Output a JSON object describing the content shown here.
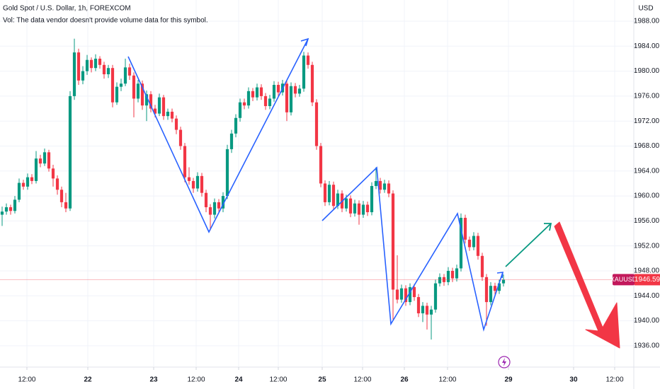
{
  "chart_data": {
    "type": "candlestick",
    "title": "Gold Spot / U.S. Dollar, 1h, FOREXCOM",
    "subtitle": "Vol: The data vendor doesn't provide volume data for this symbol.",
    "currency": "USD",
    "symbol": "XAUUSD",
    "up_color": "#089981",
    "down_color": "#f23645",
    "grid": true,
    "xlim": [
      -0.5,
      148.67
    ],
    "xticks": [
      {
        "value": 5.83,
        "label": "12:00"
      },
      {
        "value": 20.17,
        "label": "22"
      },
      {
        "value": 35.67,
        "label": "23"
      },
      {
        "value": 45.67,
        "label": "12:00"
      },
      {
        "value": 55.67,
        "label": "24"
      },
      {
        "value": 65,
        "label": "12:00"
      },
      {
        "value": 75.33,
        "label": "25"
      },
      {
        "value": 84.83,
        "label": "12:00"
      },
      {
        "value": 94.67,
        "label": "26"
      },
      {
        "value": 104.83,
        "label": "12:00"
      },
      {
        "value": 119.17,
        "label": "29"
      },
      {
        "value": 134.5,
        "label": "30"
      },
      {
        "value": 144.17,
        "label": "12:00"
      }
    ],
    "ylim": [
      1932.7,
      1991.4
    ],
    "yticks": [
      {
        "value": 1936,
        "label": "1936.00"
      },
      {
        "value": 1940,
        "label": "1940.00"
      },
      {
        "value": 1944,
        "label": "1944.00"
      },
      {
        "value": 1948,
        "label": "1948.00"
      },
      {
        "value": 1952,
        "label": "1952.00"
      },
      {
        "value": 1956,
        "label": "1956.00"
      },
      {
        "value": 1960,
        "label": "1960.00"
      },
      {
        "value": 1964,
        "label": "1964.00"
      },
      {
        "value": 1968,
        "label": "1968.00"
      },
      {
        "value": 1972,
        "label": "1972.00"
      },
      {
        "value": 1976,
        "label": "1976.00"
      },
      {
        "value": 1980,
        "label": "1980.00"
      },
      {
        "value": 1984,
        "label": "1984.00"
      },
      {
        "value": 1988,
        "label": "1988.00"
      }
    ],
    "ohlc": [
      [
        1957.0,
        1958.3,
        1955.2,
        1957.5
      ],
      [
        1957.5,
        1958.8,
        1957.0,
        1958.2
      ],
      [
        1958.2,
        1958.6,
        1957.0,
        1957.6
      ],
      [
        1957.6,
        1960.0,
        1957.2,
        1959.4
      ],
      [
        1959.4,
        1962.8,
        1959.0,
        1962.1
      ],
      [
        1962.1,
        1962.6,
        1961.0,
        1961.5
      ],
      [
        1961.5,
        1963.6,
        1961.0,
        1963.0
      ],
      [
        1963.0,
        1963.5,
        1961.9,
        1962.4
      ],
      [
        1962.4,
        1967.2,
        1962.0,
        1966.0
      ],
      [
        1966.0,
        1966.6,
        1964.6,
        1965.2
      ],
      [
        1965.2,
        1967.6,
        1964.8,
        1967.0
      ],
      [
        1967.0,
        1967.4,
        1963.9,
        1964.4
      ],
      [
        1964.4,
        1965.0,
        1961.5,
        1962.8
      ],
      [
        1962.8,
        1963.3,
        1960.2,
        1961.0
      ],
      [
        1961.0,
        1961.5,
        1958.2,
        1959.0
      ],
      [
        1959.0,
        1960.5,
        1957.4,
        1958.0
      ],
      [
        1958.0,
        1976.8,
        1957.6,
        1976.0
      ],
      [
        1976.0,
        1985.2,
        1975.4,
        1983.0
      ],
      [
        1983.0,
        1983.6,
        1977.8,
        1978.5
      ],
      [
        1978.5,
        1980.8,
        1977.9,
        1980.0
      ],
      [
        1980.0,
        1982.6,
        1979.4,
        1981.8
      ],
      [
        1981.8,
        1982.2,
        1979.8,
        1980.5
      ],
      [
        1980.5,
        1982.7,
        1980.0,
        1982.0
      ],
      [
        1982.0,
        1982.4,
        1980.4,
        1981.0
      ],
      [
        1981.0,
        1981.5,
        1978.8,
        1979.5
      ],
      [
        1979.5,
        1981.0,
        1978.9,
        1980.5
      ],
      [
        1980.5,
        1981.0,
        1974.2,
        1975.0
      ],
      [
        1975.0,
        1978.2,
        1974.6,
        1977.5
      ],
      [
        1977.5,
        1978.8,
        1976.8,
        1978.0
      ],
      [
        1978.0,
        1982.0,
        1977.6,
        1980.6
      ],
      [
        1980.6,
        1981.2,
        1978.6,
        1979.3
      ],
      [
        1979.3,
        1979.8,
        1972.6,
        1975.6
      ],
      [
        1975.6,
        1978.6,
        1975.0,
        1978.0
      ],
      [
        1978.0,
        1978.5,
        1973.8,
        1974.5
      ],
      [
        1974.5,
        1976.9,
        1972.0,
        1976.3
      ],
      [
        1976.3,
        1976.8,
        1973.4,
        1974.0
      ],
      [
        1974.0,
        1974.6,
        1972.6,
        1973.2
      ],
      [
        1973.2,
        1976.4,
        1972.8,
        1975.8
      ],
      [
        1975.8,
        1976.2,
        1972.2,
        1972.8
      ],
      [
        1972.8,
        1974.0,
        1972.2,
        1973.5
      ],
      [
        1973.5,
        1974.0,
        1971.8,
        1972.4
      ],
      [
        1972.4,
        1972.9,
        1969.9,
        1970.6
      ],
      [
        1970.6,
        1971.1,
        1967.4,
        1968.0
      ],
      [
        1968.0,
        1968.5,
        1962.2,
        1963.0
      ],
      [
        1963.0,
        1964.6,
        1961.8,
        1962.4
      ],
      [
        1962.4,
        1962.9,
        1960.5,
        1961.2
      ],
      [
        1961.2,
        1963.8,
        1960.7,
        1963.2
      ],
      [
        1963.2,
        1963.7,
        1959.9,
        1960.5
      ],
      [
        1960.5,
        1961.0,
        1957.4,
        1958.2
      ],
      [
        1958.2,
        1958.7,
        1954.5,
        1957.0
      ],
      [
        1957.0,
        1959.6,
        1956.4,
        1959.0
      ],
      [
        1959.0,
        1959.5,
        1957.3,
        1958.0
      ],
      [
        1958.0,
        1960.6,
        1957.4,
        1960.0
      ],
      [
        1960.0,
        1968.2,
        1959.5,
        1967.5
      ],
      [
        1967.5,
        1970.6,
        1966.9,
        1970.0
      ],
      [
        1970.0,
        1973.1,
        1969.4,
        1972.5
      ],
      [
        1972.5,
        1975.6,
        1971.9,
        1975.0
      ],
      [
        1975.0,
        1975.6,
        1973.9,
        1974.5
      ],
      [
        1974.5,
        1977.4,
        1974.0,
        1976.8
      ],
      [
        1976.8,
        1977.3,
        1975.2,
        1975.8
      ],
      [
        1975.8,
        1978.0,
        1975.3,
        1977.4
      ],
      [
        1977.4,
        1977.9,
        1975.4,
        1976.0
      ],
      [
        1976.0,
        1976.5,
        1973.8,
        1974.4
      ],
      [
        1974.4,
        1976.2,
        1973.9,
        1975.6
      ],
      [
        1975.6,
        1978.4,
        1975.1,
        1977.8
      ],
      [
        1977.8,
        1978.3,
        1976.0,
        1976.6
      ],
      [
        1976.6,
        1978.6,
        1976.1,
        1978.0
      ],
      [
        1978.0,
        1978.5,
        1972.0,
        1973.4
      ],
      [
        1973.4,
        1978.2,
        1972.9,
        1977.6
      ],
      [
        1977.6,
        1978.1,
        1975.8,
        1976.4
      ],
      [
        1976.4,
        1977.8,
        1975.9,
        1977.2
      ],
      [
        1977.2,
        1983.1,
        1976.7,
        1982.5
      ],
      [
        1982.5,
        1983.0,
        1980.4,
        1981.0
      ],
      [
        1981.0,
        1981.5,
        1974.4,
        1975.0
      ],
      [
        1975.0,
        1975.5,
        1967.4,
        1968.0
      ],
      [
        1968.0,
        1968.5,
        1961.4,
        1962.0
      ],
      [
        1962.0,
        1962.5,
        1958.4,
        1959.0
      ],
      [
        1959.0,
        1962.4,
        1958.5,
        1961.8
      ],
      [
        1961.8,
        1962.3,
        1957.8,
        1958.4
      ],
      [
        1958.4,
        1961.0,
        1957.9,
        1960.4
      ],
      [
        1960.4,
        1960.9,
        1957.4,
        1958.0
      ],
      [
        1958.0,
        1960.2,
        1957.5,
        1959.6
      ],
      [
        1959.6,
        1960.1,
        1956.6,
        1957.2
      ],
      [
        1957.2,
        1959.4,
        1956.7,
        1958.8
      ],
      [
        1958.8,
        1959.3,
        1955.4,
        1957.0
      ],
      [
        1957.0,
        1959.2,
        1956.5,
        1958.6
      ],
      [
        1958.6,
        1959.1,
        1956.8,
        1957.4
      ],
      [
        1957.4,
        1962.2,
        1956.9,
        1961.6
      ],
      [
        1961.6,
        1964.6,
        1961.1,
        1962.4
      ],
      [
        1962.4,
        1962.9,
        1960.4,
        1961.0
      ],
      [
        1961.0,
        1962.6,
        1960.5,
        1962.0
      ],
      [
        1962.0,
        1962.5,
        1959.8,
        1960.4
      ],
      [
        1960.4,
        1960.9,
        1940.2,
        1945.0
      ],
      [
        1945.0,
        1950.5,
        1942.8,
        1943.4
      ],
      [
        1943.4,
        1945.8,
        1942.9,
        1945.2
      ],
      [
        1945.2,
        1945.7,
        1942.4,
        1943.0
      ],
      [
        1943.0,
        1946.0,
        1942.5,
        1945.4
      ],
      [
        1945.4,
        1945.9,
        1943.2,
        1943.8
      ],
      [
        1943.8,
        1944.3,
        1940.6,
        1941.2
      ],
      [
        1941.2,
        1943.0,
        1939.8,
        1942.4
      ],
      [
        1942.4,
        1942.9,
        1938.6,
        1941.0
      ],
      [
        1941.0,
        1942.4,
        1937.0,
        1941.8
      ],
      [
        1941.8,
        1946.6,
        1941.3,
        1946.0
      ],
      [
        1946.0,
        1947.6,
        1945.5,
        1947.0
      ],
      [
        1947.0,
        1947.5,
        1945.6,
        1946.2
      ],
      [
        1946.2,
        1948.6,
        1945.7,
        1948.0
      ],
      [
        1948.0,
        1948.5,
        1946.2,
        1946.8
      ],
      [
        1946.8,
        1949.0,
        1946.3,
        1948.4
      ],
      [
        1948.4,
        1957.2,
        1947.9,
        1956.5
      ],
      [
        1956.5,
        1957.0,
        1952.4,
        1953.0
      ],
      [
        1953.0,
        1953.5,
        1951.2,
        1951.8
      ],
      [
        1951.8,
        1954.2,
        1951.3,
        1953.6
      ],
      [
        1953.6,
        1954.1,
        1949.8,
        1950.4
      ],
      [
        1950.4,
        1950.9,
        1946.4,
        1947.0
      ],
      [
        1947.0,
        1947.5,
        1939.2,
        1943.0
      ],
      [
        1943.0,
        1946.2,
        1942.5,
        1945.6
      ],
      [
        1945.6,
        1946.1,
        1944.2,
        1944.8
      ],
      [
        1944.8,
        1946.6,
        1944.3,
        1946.0
      ],
      [
        1946.0,
        1947.4,
        1945.5,
        1946.59
      ]
    ]
  }
}
